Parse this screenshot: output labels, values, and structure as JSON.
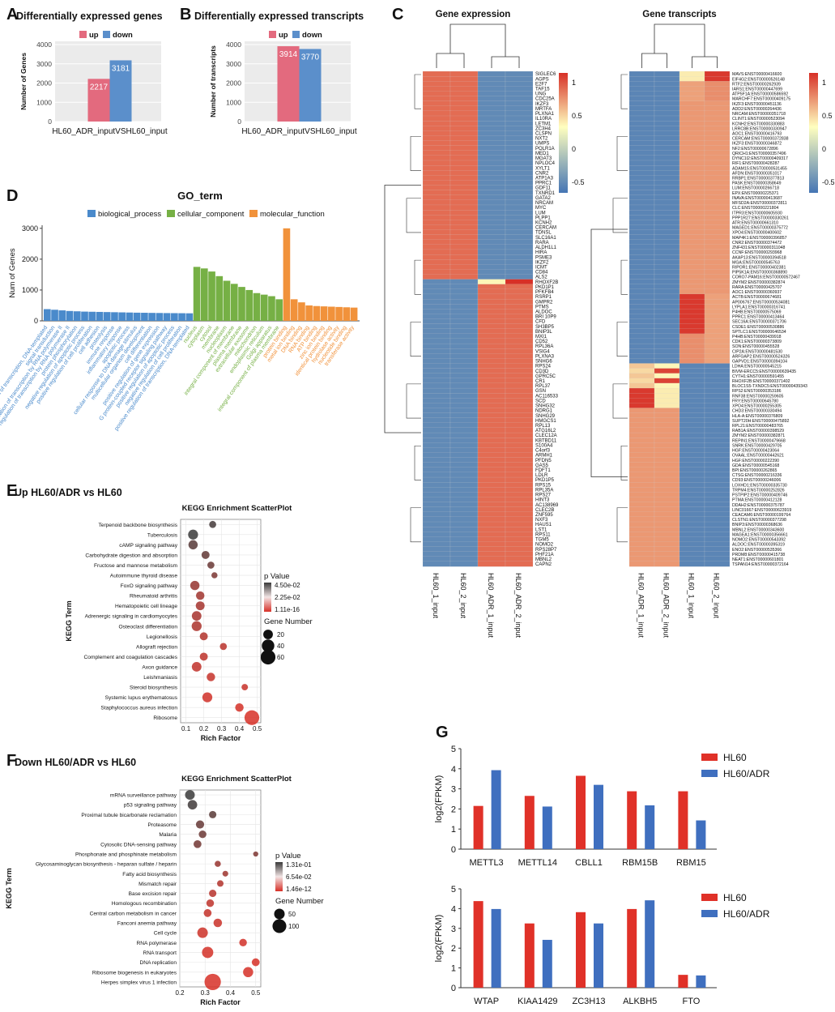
{
  "colors": {
    "up": "#E36A7E",
    "down": "#5B8FCB",
    "bp": "#4A8ACB",
    "cc": "#76B045",
    "mf": "#F1923B",
    "hl60": "#E03128",
    "hl60adr": "#3F6FBF",
    "heat_low": "#4575B4",
    "heat_mid": "#FFFFBF",
    "heat_high": "#D73027",
    "panel_bg": "#EBEBEB"
  },
  "chart_data": [
    {
      "panel": "A",
      "type": "bar",
      "title": "Differentially expressed genes",
      "legend": [
        "up",
        "down"
      ],
      "categories": [
        "HL60_ADR_inputVSHL60_input"
      ],
      "series": [
        {
          "name": "up",
          "values": [
            2217
          ]
        },
        {
          "name": "down",
          "values": [
            3181
          ]
        }
      ],
      "ylabel": "Number of Genes",
      "ylim": [
        0,
        4000
      ],
      "yticks": [
        "0",
        "1000",
        "2000",
        "3000",
        "4000"
      ]
    },
    {
      "panel": "B",
      "type": "bar",
      "title": "Differentially expressed transcripts",
      "legend": [
        "up",
        "down"
      ],
      "categories": [
        "HL60_ADR_inputVSHL60_input"
      ],
      "series": [
        {
          "name": "up",
          "values": [
            3914
          ]
        },
        {
          "name": "down",
          "values": [
            3770
          ]
        }
      ],
      "ylabel": "Number of transcripts",
      "ylim": [
        0,
        4000
      ],
      "yticks": [
        "0",
        "1000",
        "2000",
        "3000",
        "4000"
      ]
    },
    {
      "panel": "D",
      "type": "bar",
      "title": "GO_term",
      "legend": [
        "biological_process",
        "cellular_component",
        "molecular_function"
      ],
      "ylabel": "Num of Genes",
      "ylim": [
        0,
        3100
      ],
      "yticks": [
        "0",
        "1000",
        "2000",
        "3000"
      ],
      "series": [
        {
          "name": "biological_process",
          "labels": [
            "regulation of transcription, DNA-templated",
            "signal transduction",
            "positive regulation of transcription by RNA polymerase II",
            "negative regulation of transcription by RNA polymerase II",
            "protein phosphorylation",
            "negative regulation of apoptotic process",
            "positive regulation of cell proliferation",
            "cell adhesion",
            "proteolysis",
            "immune response",
            "inflammatory response",
            "apoptotic process",
            "cellular response to DNA damage stimulus",
            "multicellular organism development",
            "cell differentiation",
            "positive regulation of gene expression",
            "G protein-coupled receptor signaling pathway",
            "positive regulation of apoptotic process",
            "negative regulation of cell proliferation",
            "positive regulation of transcription, DNA-templated"
          ],
          "values": [
            380,
            360,
            340,
            320,
            310,
            300,
            295,
            290,
            285,
            280,
            275,
            270,
            265,
            262,
            258,
            255,
            252,
            250,
            248,
            245
          ]
        },
        {
          "name": "cellular_component",
          "labels": [
            "nucleus",
            "cytoplasm",
            "cytosol",
            "membrane",
            "nucleoplasm",
            "integral component of membrane",
            "plasma membrane",
            "extracellular exosome",
            "mitochondrion",
            "endoplasmic reticulum",
            "Golgi apparatus",
            "integral component of plasma membrane"
          ],
          "values": [
            1750,
            1700,
            1600,
            1450,
            1300,
            1200,
            1100,
            1000,
            900,
            850,
            800,
            700
          ]
        },
        {
          "name": "molecular_function",
          "labels": [
            "protein binding",
            "metal ion binding",
            "DNA binding",
            "RNA binding",
            "ATP binding",
            "zinc ion binding",
            "identical protein binding",
            "hydrolase activity",
            "nucleotide binding",
            "transferase activity"
          ],
          "values": [
            3000,
            700,
            600,
            500,
            480,
            470,
            460,
            450,
            440,
            430
          ]
        }
      ]
    },
    {
      "panel": "E",
      "type": "scatter",
      "header": "Up HL60/ADR vs HL60",
      "title": "KEGG Enrichment ScatterPlot",
      "xlabel": "Rich Factor",
      "ylabel": "KEGG Term",
      "xlim": [
        0.07,
        0.52
      ],
      "xticks": [
        "0.1",
        "0.2",
        "0.3",
        "0.4",
        "0.5"
      ],
      "terms": [
        "Terpenoid backbone biosynthesis",
        "Tuberculosis",
        "cAMP signaling pathway",
        "Carbohydrate digestion and absorption",
        "Fructose and mannose metabolism",
        "Autoimmune thyroid disease",
        "FoxO signaling pathway",
        "Rheumatoid arthritis",
        "Hematopoietic cell lineage",
        "Adrenergic signaling in cardiomyocytes",
        "Osteoclast differentiation",
        "Legionellosis",
        "Allograft rejection",
        "Complement and coagulation cascades",
        "Axon guidance",
        "Leishmaniasis",
        "Steroid biosynthesis",
        "Systemic lupus erythematosus",
        "Staphylococcus aureus infection",
        "Ribosome"
      ],
      "x": [
        0.25,
        0.14,
        0.14,
        0.21,
        0.24,
        0.26,
        0.15,
        0.18,
        0.18,
        0.16,
        0.16,
        0.2,
        0.31,
        0.2,
        0.16,
        0.24,
        0.43,
        0.22,
        0.4,
        0.47
      ],
      "gene_number": [
        8,
        22,
        18,
        12,
        8,
        5,
        18,
        14,
        16,
        20,
        22,
        12,
        8,
        12,
        20,
        14,
        6,
        22,
        14,
        60
      ],
      "p_value": [
        0.04,
        0.045,
        0.035,
        0.032,
        0.03,
        0.025,
        0.018,
        0.015,
        0.014,
        0.013,
        0.012,
        0.01,
        0.008,
        0.007,
        0.006,
        0.005,
        0.004,
        0.002,
        0.001,
        1.11e-16
      ],
      "legend_p_title": "p Value",
      "legend_p": [
        "4.50e-02",
        "2.25e-02",
        "1.11e-16"
      ],
      "legend_size_title": "Gene Number",
      "legend_size": [
        "20",
        "40",
        "60"
      ]
    },
    {
      "panel": "F",
      "type": "scatter",
      "header": "Down HL60/ADR vs HL60",
      "title": "KEGG Enrichment ScatterPlot",
      "xlabel": "Rich Factor",
      "ylabel": "KEGG Term",
      "xlim": [
        0.2,
        0.52
      ],
      "xticks": [
        "0.2",
        "0.3",
        "0.4",
        "0.5"
      ],
      "terms": [
        "mRNA surveillance pathway",
        "p53 signaling pathway",
        "Proximal tubule bicarbonate reclamation",
        "Proteasome",
        "Malaria",
        "Cytosolic DNA-sensing pathway",
        "Phosphonate and phosphinate metabolism",
        "Glycosaminoglycan biosynthesis - heparan sulfate / heparin",
        "Fatty acid biosynthesis",
        "Mismatch repair",
        "Base excision repair",
        "Homologous recombination",
        "Central carbon metabolism in cancer",
        "Fanconi anemia pathway",
        "Cell cycle",
        "RNA polymerase",
        "RNA transport",
        "DNA replication",
        "Ribosome biogenesis in eukaryotes",
        "Herpes simplex virus 1 infection"
      ],
      "x": [
        0.24,
        0.25,
        0.33,
        0.28,
        0.29,
        0.27,
        0.5,
        0.35,
        0.38,
        0.36,
        0.33,
        0.32,
        0.31,
        0.35,
        0.29,
        0.45,
        0.31,
        0.5,
        0.47,
        0.33
      ],
      "gene_number": [
        40,
        38,
        18,
        25,
        20,
        22,
        5,
        10,
        8,
        12,
        18,
        20,
        22,
        28,
        50,
        20,
        60,
        22,
        45,
        150
      ],
      "p_value": [
        0.13,
        0.12,
        0.1,
        0.09,
        0.085,
        0.08,
        0.07,
        0.05,
        0.045,
        0.03,
        0.025,
        0.02,
        0.015,
        0.01,
        0.008,
        0.005,
        0.002,
        0.001,
        0.0005,
        1.46e-12
      ],
      "legend_p_title": "p Value",
      "legend_p": [
        "1.31e-01",
        "6.54e-02",
        "1.46e-12"
      ],
      "legend_size_title": "Gene Number",
      "legend_size": [
        "50",
        "100"
      ]
    },
    {
      "panel": "G1",
      "type": "bar",
      "ylabel": "log2(FPKM)",
      "ylim": [
        0,
        5
      ],
      "yticks": [
        "0",
        "1",
        "2",
        "3",
        "4",
        "5"
      ],
      "categories": [
        "METTL3",
        "METTL14",
        "CBLL1",
        "RBM15B",
        "RBM15"
      ],
      "series": [
        {
          "name": "HL60",
          "values": [
            2.15,
            2.65,
            3.65,
            2.88,
            2.88
          ]
        },
        {
          "name": "HL60/ADR",
          "values": [
            3.93,
            2.12,
            3.2,
            2.18,
            1.43
          ]
        }
      ]
    },
    {
      "panel": "G2",
      "type": "bar",
      "ylabel": "log2(FPKM)",
      "ylim": [
        0,
        5
      ],
      "yticks": [
        "0",
        "1",
        "2",
        "3",
        "4",
        "5"
      ],
      "categories": [
        "WTAP",
        "KIAA1429",
        "ZC3H13",
        "ALKBH5",
        "FTO"
      ],
      "series": [
        {
          "name": "HL60",
          "values": [
            4.38,
            3.25,
            3.82,
            3.98,
            0.65
          ]
        },
        {
          "name": "HL60/ADR",
          "values": [
            3.98,
            2.42,
            3.25,
            4.42,
            0.62
          ]
        }
      ]
    },
    {
      "panel": "C1",
      "type": "heatmap",
      "title": "Gene expression",
      "columns": [
        "HL60_1_input",
        "HL60_2_input",
        "HL60_ADR_1_input",
        "HL60_ADR_2_input"
      ],
      "rows": [
        "SIGLEC6",
        "AGPS",
        "E2F7",
        "TAF15",
        "UNG",
        "CDC25A",
        "IKZF3",
        "MRTFA",
        "PLXNA1",
        "IL10RA",
        "LETM1",
        "ZC3H4",
        "CLSPN",
        "NXT2",
        "UMPS",
        "POLR1A",
        "MED1",
        "MGAT3",
        "NPLOC4",
        "XYLT1",
        "CNR2",
        "ATP1A3",
        "PPRC1",
        "GDF11",
        "TXNRD1",
        "GATA2",
        "NRCAM",
        "MYC",
        "LUM",
        "PLPP1",
        "KCNH2",
        "CERCAM",
        "TDNSL",
        "SLC16A1",
        "RARA",
        "ALDH1L1",
        "HIRA",
        "PSME3",
        "IKZF2",
        "ICMT",
        "CD84",
        "ALS2",
        "RHOXF2B",
        "PKD1P1",
        "PFKFB4",
        "RSRP1",
        "GMPR2",
        "PTMS",
        "ALDOC",
        "BRI 10P9",
        "CFD",
        "SH3BP5",
        "BNIP3L",
        "MXI1",
        "CD52",
        "RPL36A",
        "VSIG4",
        "PLXNA3",
        "SNHG6",
        "RPS24",
        "CD3D",
        "GPRC5C",
        "CR1",
        "RPL37",
        "GSN",
        "AC116533",
        "SCD",
        "SNHG32",
        "NDRG1",
        "SNHG29",
        "HMGCS1",
        "RPL13",
        "ATG16L2",
        "CLEC12A",
        "KBTBD11",
        "S100A4",
        "C4orf3",
        "ARMH1",
        "PFDN5",
        "GAS5",
        "FDFT1",
        "LDLR",
        "PKD1P5",
        "RPS15",
        "RPL35A",
        "RPS27",
        "HINT3",
        "AC138969",
        "CLEC2B",
        "ZNF595",
        "NXF3",
        "HAUS1",
        "LST1",
        "RPS11",
        "TGM5",
        "NOMO2",
        "RPS28P7",
        "PHF21A",
        "MBNL2",
        "CAPN2"
      ],
      "legend_ticks": [
        "1",
        "0.5",
        "0",
        "-0.5"
      ]
    },
    {
      "panel": "C2",
      "type": "heatmap",
      "title": "Gene transcripts",
      "columns": [
        "HL60_ADR_1_input",
        "HL60_ADR_2_input",
        "HL60_1_input",
        "HL60_2_input"
      ],
      "rows": [
        "MAVS:ENST00000416600",
        "EIF4G2:ENST00000526148",
        "RTF2:ENST00000262939",
        "IARS1:ENST00000447699",
        "ATP5F1A:ENST00000586592",
        "MARCHF7:ENST00000409175",
        "IKZF3:ENST00000451136",
        "ADD2:ENST00000264436",
        "NRCAM:ENST00000351718",
        "CLINT1:ENST00000523094",
        "KCNH2:ENST00000330883",
        "LRRC8B:ENST00000330947",
        "AOC1:ENST00000416793",
        "CERCAM:ENST00000372838",
        "IKZF3:ENST00000346872",
        "NF2:ENST00000672896",
        "QRICH1:ENST00000357496",
        "DYNC1I2:ENST00000409317",
        "RIF1:ENST00000428287",
        "ADAM15:ENST00000531455",
        "AFDN:ENST00000351017",
        "RRBP1:ENST00000377813",
        "PASK:ENST00000358649",
        "LUM:ENST00000266718",
        "EPX:ENST00000225371",
        "INAVA:ENST00000413687",
        "MFSD2A:ENST00000372811",
        "CLC:ENST00000221804",
        "ITPR3:ENST00000605930",
        "PPP1R27:ENST00000330261",
        "ATR:ENST00000661310",
        "MAGED1:ENST00000375772",
        "XPO4:ENST00000400602",
        "MAP4K1:ENST00000396857",
        "CNR2:ENST00000374472",
        "ZNF431:ENST00000311048",
        "CCNF:ENST00000293968",
        "AKAP13:ENST00000394518",
        "MGA:ENST00000545763",
        "RIPOR1:ENST00000402381",
        "PIP5K1A:ENST00000368890",
        "CORO7-PAM16:ENST00000572467",
        "ZMYM2:ENST00000382874",
        "RARA:ENST00000425707",
        "AOC1:ENST00000360937",
        "ACTB:ENST00000674681",
        "AP006767:ENST00000534081",
        "LYPLA1:ENST00000316741",
        "P4HB:ENST00000575069",
        "PPRC1:ENST00000413464",
        "SEC16A:ENST00000371706",
        "CSDE1:ENST00000530886",
        "SPTLC1:ENST00000646534",
        "P4HB:ENST00000439918",
        "CDK1:ENST00000373809",
        "SON:ENST00000455528",
        "CIP2A:ENST00000481530",
        "ARFGAP2:ENST00000524326",
        "GAPVD1:ENST00000394104",
        "LDHA:ENST00000545215",
        "BIVM-ERCC5:ENST00000639435",
        "CYTH1:ENST00000591455",
        "RHOXF2B:ENST00000371402",
        "BLOC1S5-TXNDC5:ENST00000439343",
        "RPS2:ENST00000353186",
        "RNF38:ENST00000259605",
        "FRY:ENST00000645780",
        "XPO4:ENST00000255305",
        "CHD3:ENST00000330494",
        "HLA-A:ENST00000376809",
        "SUPT20H:ENST00000475892",
        "RPL21:ENST00000483765",
        "RAB1A:ENST00000398529",
        "ZMYM2:ENST00000382871",
        "REPIN1:ENST00000479668",
        "SNRK:ENST00000429705",
        "HGF:ENST00000423064",
        "OVAAL:ENST00000442621",
        "HGF:ENST00000222390",
        "GDA:ENST00000545168",
        "BPI:ENST00000262865",
        "CTSG:ENST00000216336",
        "CD93:ENST00000246006",
        "LOXHD1:ENST00000335730",
        "TRPM4:ENST00000252826",
        "PSTPIP2:ENST00000409746",
        "PTMA:ENST00000412128",
        "DDAH2:ENST00000375787",
        "LINC01667:ENST00000623919",
        "CEACAM6:ENST00000199764",
        "CLSTN1:ENST00000377298",
        "BNIP3:ENST00000368636",
        "MBNL2:ENST00000343600",
        "MAGEA1:ENST00000356661",
        "NOMO2:ENST00000543392",
        "ALDOC:ENST00000395319",
        "ENO2:ENST00000535366",
        "PRDM8:ENST00000415738",
        "NEAT1:ENST00000601801",
        "TSPAN14:ENST00000372164"
      ],
      "legend_ticks": [
        "1",
        "0.5",
        "0",
        "-0.5"
      ]
    }
  ]
}
